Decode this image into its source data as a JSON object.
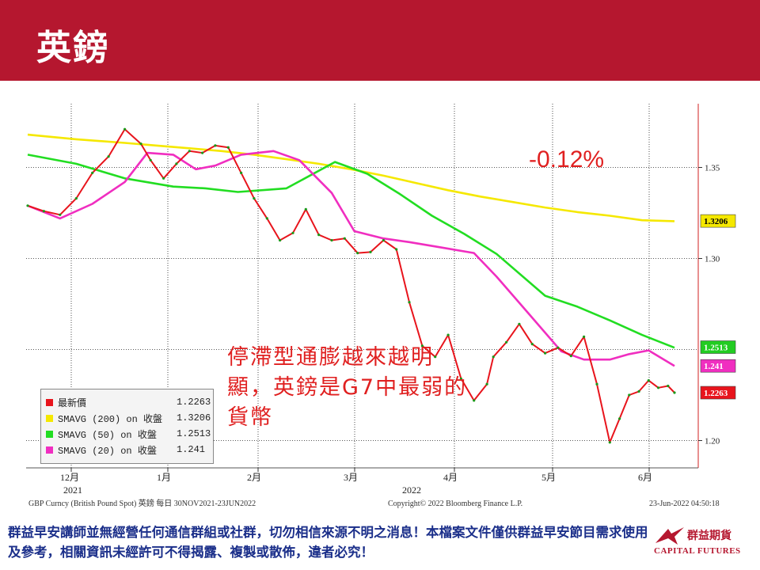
{
  "header": {
    "title": "英鎊"
  },
  "annotations": {
    "change_pct": "-0.12%",
    "note": "停滯型通膨越來越明顯，英鎊是G7中最弱的貨幣"
  },
  "legend": {
    "rows": [
      {
        "label": "最新價",
        "value": "1.2263",
        "color": "#e8141c"
      },
      {
        "label": "SMAVG (200) on 收盤",
        "value": "1.3206",
        "color": "#f5e800"
      },
      {
        "label": "SMAVG (50)  on 收盤",
        "value": "1.2513",
        "color": "#22dd22"
      },
      {
        "label": "SMAVG (20)  on 收盤",
        "value": "1.241",
        "color": "#f02ec0"
      }
    ]
  },
  "chart_meta": {
    "source_left": "GBP Curncy (British Pound Spot) 英鎊  每日 30NOV2021-23JUN2022",
    "source_mid": "Copyright© 2022 Bloomberg Finance L.P.",
    "source_right": "23-Jun-2022 04:50:18"
  },
  "chart_data": {
    "type": "line",
    "x_labels": [
      "12月",
      "1月",
      "2月",
      "3月",
      "4月",
      "5月",
      "6月"
    ],
    "year_labels": [
      "2021",
      "2022"
    ],
    "y_ticks": [
      "1.35",
      "1.30",
      "1.20"
    ],
    "ylim": [
      1.185,
      1.385
    ],
    "price_tags": [
      {
        "value": 1.3206,
        "label": "1.3206",
        "bg": "#f5e800",
        "fg": "#000000"
      },
      {
        "value": 1.2513,
        "label": "1.2513",
        "bg": "#22cc22",
        "fg": "#ffffff"
      },
      {
        "value": 1.241,
        "label": "1.241",
        "bg": "#f02ec0",
        "fg": "#ffffff"
      },
      {
        "value": 1.2263,
        "label": "1.2263",
        "bg": "#e8141c",
        "fg": "#ffffff"
      }
    ],
    "series": [
      {
        "name": "SMAVG (200) on 收盤",
        "color": "#f5e800",
        "x": [
          0,
          15,
          30,
          40,
          50,
          60,
          70,
          80,
          90,
          100,
          110,
          120,
          130,
          140,
          150,
          160,
          170,
          180,
          190,
          200
        ],
        "values": [
          1.368,
          1.3655,
          1.3635,
          1.362,
          1.3605,
          1.359,
          1.357,
          1.3545,
          1.352,
          1.349,
          1.3455,
          1.3415,
          1.3375,
          1.334,
          1.331,
          1.328,
          1.3255,
          1.3235,
          1.321,
          1.3205
        ]
      },
      {
        "name": "SMAVG (50) on 收盤",
        "color": "#22dd22",
        "x": [
          0,
          15,
          30,
          45,
          55,
          65,
          80,
          95,
          105,
          115,
          125,
          135,
          145,
          160,
          170,
          180,
          190,
          200
        ],
        "values": [
          1.357,
          1.352,
          1.344,
          1.3395,
          1.3385,
          1.3365,
          1.3385,
          1.353,
          1.3465,
          1.3355,
          1.3235,
          1.3135,
          1.3025,
          1.2795,
          1.2735,
          1.266,
          1.258,
          1.251
        ]
      },
      {
        "name": "SMAVG (20) on 收盤",
        "color": "#f02ec0",
        "x": [
          0,
          10,
          20,
          30,
          37,
          45,
          52,
          58,
          66,
          76,
          84,
          94,
          101,
          110,
          118,
          128,
          138,
          145,
          155,
          165,
          172,
          180,
          186,
          192,
          200
        ],
        "values": [
          1.329,
          1.322,
          1.33,
          1.342,
          1.358,
          1.357,
          1.349,
          1.351,
          1.357,
          1.359,
          1.354,
          1.336,
          1.315,
          1.311,
          1.309,
          1.306,
          1.303,
          1.29,
          1.2695,
          1.249,
          1.2445,
          1.2445,
          1.2475,
          1.2495,
          1.241
        ]
      },
      {
        "name": "最新價",
        "color": "#e8141c",
        "x": [
          0,
          5,
          10,
          15,
          20,
          25,
          30,
          35,
          38,
          42,
          46,
          50,
          54,
          58,
          62,
          66,
          70,
          74,
          78,
          82,
          86,
          90,
          94,
          98,
          102,
          106,
          110,
          114,
          118,
          122,
          126,
          130,
          134,
          138,
          142,
          144,
          148,
          152,
          156,
          160,
          164,
          168,
          172,
          176,
          180,
          183,
          186,
          189,
          192,
          195,
          198,
          200
        ],
        "values": [
          1.329,
          1.326,
          1.324,
          1.333,
          1.347,
          1.356,
          1.371,
          1.363,
          1.354,
          1.344,
          1.352,
          1.359,
          1.358,
          1.362,
          1.361,
          1.347,
          1.333,
          1.322,
          1.31,
          1.314,
          1.327,
          1.313,
          1.31,
          1.311,
          1.303,
          1.3035,
          1.31,
          1.305,
          1.276,
          1.252,
          1.246,
          1.258,
          1.234,
          1.222,
          1.231,
          1.246,
          1.254,
          1.264,
          1.253,
          1.248,
          1.251,
          1.2465,
          1.257,
          1.231,
          1.199,
          1.212,
          1.225,
          1.227,
          1.233,
          1.229,
          1.23,
          1.2263
        ]
      }
    ]
  }
}
